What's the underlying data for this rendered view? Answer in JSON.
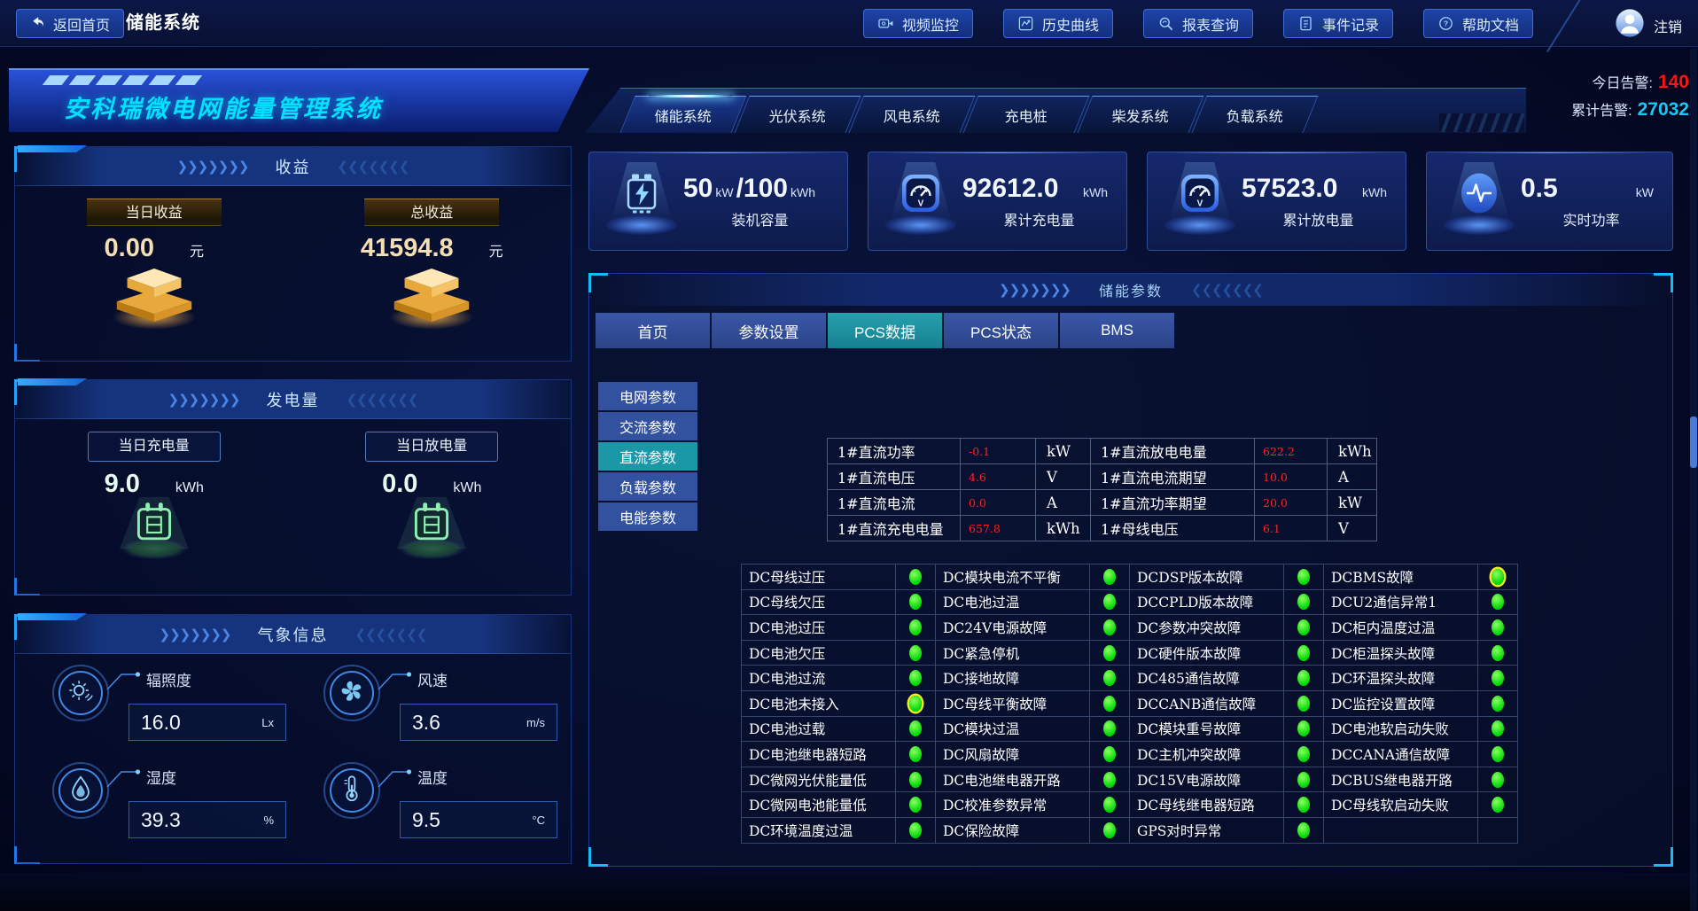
{
  "topbar": {
    "back_label": "返回首页",
    "page_title": "储能系统",
    "nav_buttons": [
      {
        "label": "视频监控",
        "icon": "video-icon"
      },
      {
        "label": "历史曲线",
        "icon": "history-curve-icon"
      },
      {
        "label": "报表查询",
        "icon": "report-search-icon"
      },
      {
        "label": "事件记录",
        "icon": "event-log-icon"
      },
      {
        "label": "帮助文档",
        "icon": "help-icon"
      }
    ],
    "logout_label": "注销"
  },
  "banner": {
    "title": "安科瑞微电网能量管理系统"
  },
  "system_tabs": [
    {
      "label": "储能系统",
      "active": true
    },
    {
      "label": "光伏系统",
      "active": false
    },
    {
      "label": "风电系统",
      "active": false
    },
    {
      "label": "充电桩",
      "active": false
    },
    {
      "label": "柴发系统",
      "active": false
    },
    {
      "label": "负载系统",
      "active": false
    }
  ],
  "alarm_summary": {
    "today_label": "今日告警:",
    "today_value": "140",
    "total_label": "累计告警:",
    "total_value": "27032"
  },
  "stat_cards": [
    {
      "icon": "battery-icon",
      "value": "50",
      "unit": "kW",
      "value2": "/100",
      "unit2": "kWh",
      "label": "装机容量"
    },
    {
      "icon": "charge-meter-icon",
      "value": "92612.0",
      "unit": "kWh",
      "label": "累计充电量"
    },
    {
      "icon": "discharge-meter-icon",
      "value": "57523.0",
      "unit": "kWh",
      "label": "累计放电量"
    },
    {
      "icon": "power-pulse-icon",
      "value": "0.5",
      "unit": "kW",
      "label": "实时功率"
    }
  ],
  "revenue_panel": {
    "title": "收益",
    "items": [
      {
        "label": "当日收益",
        "value": "0.00",
        "unit": "元",
        "icon": "gold-ingot-icon"
      },
      {
        "label": "总收益",
        "value": "41594.8",
        "unit": "元",
        "icon": "gold-ingot-icon"
      }
    ]
  },
  "generation_panel": {
    "title": "发电量",
    "items": [
      {
        "label": "当日充电量",
        "value": "9.0",
        "unit": "kWh",
        "icon": "calendar-icon"
      },
      {
        "label": "当日放电量",
        "value": "0.0",
        "unit": "kWh",
        "icon": "calendar-icon"
      }
    ]
  },
  "weather_panel": {
    "title": "气象信息",
    "items": [
      {
        "icon": "irradiance-icon",
        "label": "辐照度",
        "value": "16.0",
        "unit": "Lx"
      },
      {
        "icon": "wind-speed-icon",
        "label": "风速",
        "value": "3.6",
        "unit": "m/s"
      },
      {
        "icon": "humidity-icon",
        "label": "湿度",
        "value": "39.3",
        "unit": "%"
      },
      {
        "icon": "temperature-icon",
        "label": "温度",
        "value": "9.5",
        "unit": "°C"
      }
    ]
  },
  "storage_params": {
    "title": "储能参数",
    "tabs": [
      {
        "label": "首页",
        "active": false
      },
      {
        "label": "参数设置",
        "active": false
      },
      {
        "label": "PCS数据",
        "active": true
      },
      {
        "label": "PCS状态",
        "active": false
      },
      {
        "label": "BMS",
        "active": false
      }
    ],
    "side_menu": [
      {
        "label": "电网参数",
        "active": false
      },
      {
        "label": "交流参数",
        "active": false
      },
      {
        "label": "直流参数",
        "active": true
      },
      {
        "label": "负载参数",
        "active": false
      },
      {
        "label": "电能参数",
        "active": false
      }
    ],
    "dc_table_rows": [
      [
        "1#直流功率",
        "-0.1",
        "kW",
        "1#直流放电电量",
        "622.2",
        "kWh"
      ],
      [
        "1#直流电压",
        "4.6",
        "V",
        "1#直流电流期望",
        "10.0",
        "A"
      ],
      [
        "1#直流电流",
        "0.0",
        "A",
        "1#直流功率期望",
        "20.0",
        "kW"
      ],
      [
        "1#直流充电电量",
        "657.8",
        "kWh",
        "1#母线电压",
        "6.1",
        "V"
      ]
    ],
    "alarm_grid_rows": [
      [
        {
          "label": "DC母线过压",
          "dot": "green"
        },
        {
          "label": "DC模块电流不平衡",
          "dot": "green"
        },
        {
          "label": "DCDSP版本故障",
          "dot": "green"
        },
        {
          "label": "DCBMS故障",
          "dot": "green",
          "highlight": true
        }
      ],
      [
        {
          "label": "DC母线欠压",
          "dot": "green"
        },
        {
          "label": "DC电池过温",
          "dot": "green"
        },
        {
          "label": "DCCPLD版本故障",
          "dot": "green"
        },
        {
          "label": "DCU2通信异常1",
          "dot": "green"
        }
      ],
      [
        {
          "label": "DC电池过压",
          "dot": "green"
        },
        {
          "label": "DC24V电源故障",
          "dot": "green"
        },
        {
          "label": "DC参数冲突故障",
          "dot": "green"
        },
        {
          "label": "DC柜内温度过温",
          "dot": "green"
        }
      ],
      [
        {
          "label": "DC电池欠压",
          "dot": "green"
        },
        {
          "label": "DC紧急停机",
          "dot": "green"
        },
        {
          "label": "DC硬件版本故障",
          "dot": "green"
        },
        {
          "label": "DC柜温探头故障",
          "dot": "green"
        }
      ],
      [
        {
          "label": "DC电池过流",
          "dot": "green"
        },
        {
          "label": "DC接地故障",
          "dot": "green"
        },
        {
          "label": "DC485通信故障",
          "dot": "green"
        },
        {
          "label": "DC环温探头故障",
          "dot": "green"
        }
      ],
      [
        {
          "label": "DC电池未接入",
          "dot": "green",
          "highlight": true
        },
        {
          "label": "DC母线平衡故障",
          "dot": "green"
        },
        {
          "label": "DCCANB通信故障",
          "dot": "green"
        },
        {
          "label": "DC监控设置故障",
          "dot": "green"
        }
      ],
      [
        {
          "label": "DC电池过载",
          "dot": "green"
        },
        {
          "label": "DC模块过温",
          "dot": "green"
        },
        {
          "label": "DC模块重号故障",
          "dot": "green"
        },
        {
          "label": "DC电池软启动失败",
          "dot": "green"
        }
      ],
      [
        {
          "label": "DC电池继电器短路",
          "dot": "green"
        },
        {
          "label": "DC风扇故障",
          "dot": "green"
        },
        {
          "label": "DC主机冲突故障",
          "dot": "green"
        },
        {
          "label": "DCCANA通信故障",
          "dot": "green"
        }
      ],
      [
        {
          "label": "DC微网光伏能量低",
          "dot": "green"
        },
        {
          "label": "DC电池继电器开路",
          "dot": "green"
        },
        {
          "label": "DC15V电源故障",
          "dot": "green"
        },
        {
          "label": "DCBUS继电器开路",
          "dot": "green"
        }
      ],
      [
        {
          "label": "DC微网电池能量低",
          "dot": "green"
        },
        {
          "label": "DC校准参数异常",
          "dot": "green"
        },
        {
          "label": "DC母线继电器短路",
          "dot": "green"
        },
        {
          "label": "DC母线软启动失败",
          "dot": "green"
        }
      ],
      [
        {
          "label": "DC环境温度过温",
          "dot": "green"
        },
        {
          "label": "DC保险故障",
          "dot": "green"
        },
        {
          "label": "GPS对时异常",
          "dot": "green"
        },
        null
      ]
    ]
  },
  "deco": {
    "right_arrows": "❯❯❯❯❯❯❯",
    "left_arrows": "❮❮❮❮❮❮❮"
  },
  "colors": {
    "accent_cyan": "#00d8ff",
    "alarm_red": "#ff1212",
    "dot_green": "#00dd10",
    "gold_value": "#f5dfb2",
    "active_teal": "#1b98a8"
  }
}
